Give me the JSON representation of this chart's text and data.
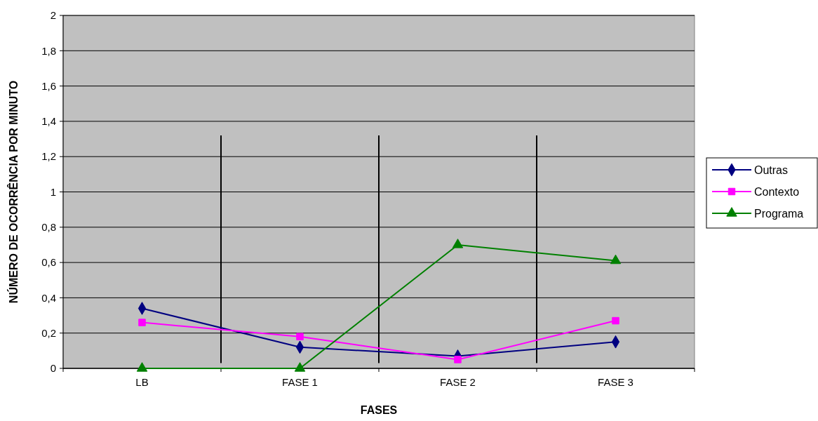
{
  "chart_data": {
    "type": "line",
    "xlabel": "FASES",
    "ylabel": "NÚMERO DE OCORRÊNCIA POR MINUTO",
    "categories": [
      "LB",
      "FASE 1",
      "FASE 2",
      "FASE 3"
    ],
    "series": [
      {
        "name": "Outras",
        "color": "#000080",
        "marker": "diamond",
        "values": [
          0.34,
          0.12,
          0.07,
          0.15
        ]
      },
      {
        "name": "Contexto",
        "color": "#ff00ff",
        "marker": "square",
        "values": [
          0.26,
          0.18,
          0.05,
          0.27
        ]
      },
      {
        "name": "Programa",
        "color": "#008000",
        "marker": "triangle",
        "values": [
          0,
          0,
          0.7,
          0.61
        ]
      }
    ],
    "ylim": [
      0,
      2
    ],
    "yticks": [
      0,
      {
        "value": 0.2,
        "label": "0,2"
      },
      {
        "value": 0.4,
        "label": "0,4"
      },
      {
        "value": 0.6,
        "label": "0,6"
      },
      {
        "value": 0.8,
        "label": "0,8"
      },
      1,
      {
        "value": 1.2,
        "label": "1,2"
      },
      {
        "value": 1.4,
        "label": "1,4"
      },
      {
        "value": 1.6,
        "label": "1,6"
      },
      {
        "value": 1.8,
        "label": "1,8"
      },
      2
    ],
    "grid": "y",
    "legend": "right"
  }
}
